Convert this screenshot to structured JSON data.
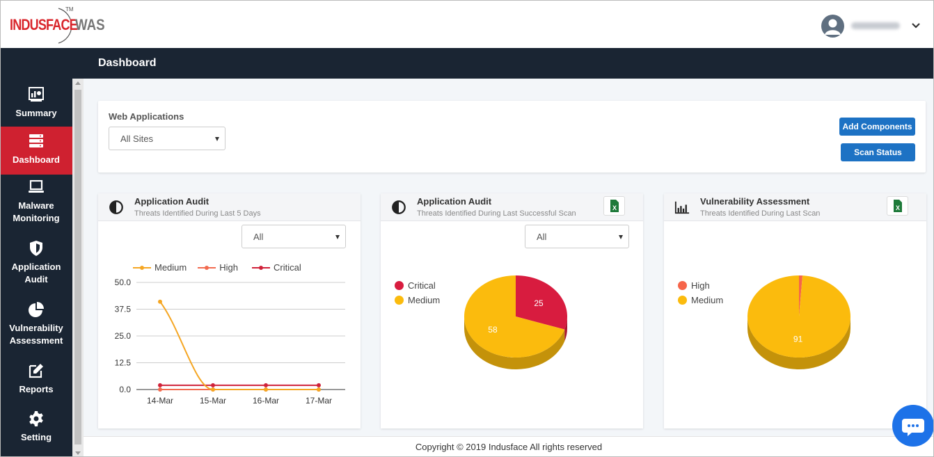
{
  "app": {
    "logo_brand": "INDUSFACE",
    "logo_product": "WAS",
    "logo_tm": "TM"
  },
  "header": {
    "page_title": "Dashboard"
  },
  "sidebar": {
    "items": [
      {
        "label": "Summary",
        "icon": "summary-icon"
      },
      {
        "label": "Dashboard",
        "icon": "dashboard-icon",
        "active": true
      },
      {
        "label": "Malware Monitoring",
        "icon": "laptop-icon"
      },
      {
        "label": "Application Audit",
        "icon": "shield-icon"
      },
      {
        "label": "Vulnerability Assessment",
        "icon": "pie-icon"
      },
      {
        "label": "Reports",
        "icon": "edit-icon"
      },
      {
        "label": "Setting",
        "icon": "gear-icon"
      }
    ]
  },
  "webapps": {
    "label": "Web Applications",
    "selected": "All Sites",
    "add_components": "Add Components",
    "scan_status": "Scan Status"
  },
  "panels": {
    "audit_trend": {
      "title": "Application Audit",
      "subtitle": "Threats Identified During Last 5 Days",
      "filter": "All"
    },
    "audit_last": {
      "title": "Application Audit",
      "subtitle": "Threats Identified During Last Successful Scan",
      "filter": "All"
    },
    "va_last": {
      "title": "Vulnerability Assessment",
      "subtitle": "Threats Identified During Last Scan"
    }
  },
  "colors": {
    "medium": "#f5a623",
    "high": "#f26b4f",
    "critical": "#d0223a",
    "pie_medium": "#fbbb0d",
    "pie_critical": "#d81c3f",
    "pie_high": "#f6654a"
  },
  "chart_data": [
    {
      "type": "line",
      "x": [
        "14-Mar",
        "15-Mar",
        "16-Mar",
        "17-Mar"
      ],
      "series": [
        {
          "name": "Medium",
          "values": [
            41,
            0,
            0,
            0
          ]
        },
        {
          "name": "High",
          "values": [
            0,
            0,
            0,
            0
          ]
        },
        {
          "name": "Critical",
          "values": [
            2,
            2,
            2,
            2
          ]
        }
      ],
      "yticks": [
        "50.0",
        "37.5",
        "25.0",
        "12.5",
        "0.0"
      ],
      "ylim": [
        0,
        50
      ],
      "legend": "top",
      "grid": true
    },
    {
      "type": "pie",
      "slices": [
        {
          "name": "Critical",
          "value": 25
        },
        {
          "name": "Medium",
          "value": 58
        }
      ],
      "legend": "left"
    },
    {
      "type": "pie",
      "slices": [
        {
          "name": "High",
          "value": 1
        },
        {
          "name": "Medium",
          "value": 91
        }
      ],
      "labels_shown": [
        "91"
      ],
      "legend": "left"
    }
  ],
  "footer": {
    "copyright": "Copyright © 2019 Indusface All rights reserved"
  }
}
